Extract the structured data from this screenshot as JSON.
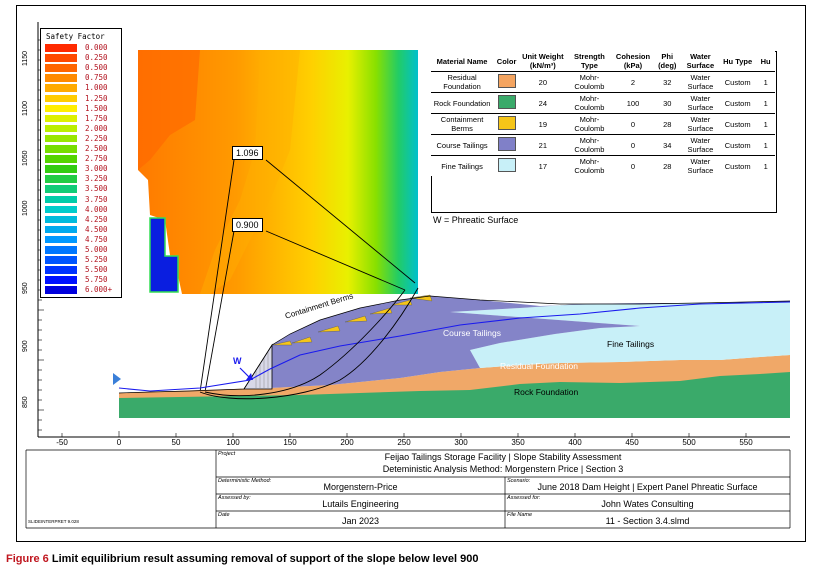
{
  "legend": {
    "title": "Safety Factor",
    "entries": [
      {
        "value": "0.000",
        "color": "#ff2a00"
      },
      {
        "value": "0.250",
        "color": "#ff4a00"
      },
      {
        "value": "0.500",
        "color": "#ff6600"
      },
      {
        "value": "0.750",
        "color": "#ff8a00"
      },
      {
        "value": "1.000",
        "color": "#ffaa00"
      },
      {
        "value": "1.250",
        "color": "#ffcc00"
      },
      {
        "value": "1.500",
        "color": "#ffee00"
      },
      {
        "value": "1.750",
        "color": "#ddf000"
      },
      {
        "value": "2.000",
        "color": "#bbee00"
      },
      {
        "value": "2.250",
        "color": "#99e600"
      },
      {
        "value": "2.500",
        "color": "#77dd00"
      },
      {
        "value": "2.750",
        "color": "#55d400"
      },
      {
        "value": "3.000",
        "color": "#33cc11"
      },
      {
        "value": "3.250",
        "color": "#22cc44"
      },
      {
        "value": "3.500",
        "color": "#11cc77"
      },
      {
        "value": "3.750",
        "color": "#00ccaa"
      },
      {
        "value": "4.000",
        "color": "#00cccc"
      },
      {
        "value": "4.250",
        "color": "#00bbdd"
      },
      {
        "value": "4.500",
        "color": "#00aaee"
      },
      {
        "value": "4.750",
        "color": "#0099ff"
      },
      {
        "value": "5.000",
        "color": "#0077ff"
      },
      {
        "value": "5.250",
        "color": "#0055ff"
      },
      {
        "value": "5.500",
        "color": "#0033ff"
      },
      {
        "value": "5.750",
        "color": "#0011ff"
      },
      {
        "value": "6.000+",
        "color": "#0000dd"
      }
    ]
  },
  "y_ticks": [
    "1150",
    "1100",
    "1050",
    "1000",
    "950",
    "900",
    "850"
  ],
  "x_ticks": [
    "-50",
    "0",
    "50",
    "100",
    "150",
    "200",
    "250",
    "300",
    "350",
    "400",
    "450",
    "500",
    "550"
  ],
  "materials_table": {
    "headers": [
      "Material Name",
      "Color",
      "Unit Weight (kN/m³)",
      "Strength Type",
      "Cohesion (kPa)",
      "Phi (deg)",
      "Water Surface",
      "Hu Type",
      "Hu"
    ],
    "rows": [
      {
        "name": "Residual Foundation",
        "color": "#f4a460",
        "unit_weight": "20",
        "strength": "Mohr-Coulomb",
        "cohesion": "2",
        "phi": "32",
        "water": "Water Surface",
        "hu_type": "Custom",
        "hu": "1"
      },
      {
        "name": "Rock Foundation",
        "color": "#3aaa6a",
        "unit_weight": "24",
        "strength": "Mohr-Coulomb",
        "cohesion": "100",
        "phi": "30",
        "water": "Water Surface",
        "hu_type": "Custom",
        "hu": "1"
      },
      {
        "name": "Containment Berms",
        "color": "#f5c518",
        "unit_weight": "19",
        "strength": "Mohr-Coulomb",
        "cohesion": "0",
        "phi": "28",
        "water": "Water Surface",
        "hu_type": "Custom",
        "hu": "1"
      },
      {
        "name": "Course Tailings",
        "color": "#8080c8",
        "unit_weight": "21",
        "strength": "Mohr-Coulomb",
        "cohesion": "0",
        "phi": "34",
        "water": "Water Surface",
        "hu_type": "Custom",
        "hu": "1"
      },
      {
        "name": "Fine Tailings",
        "color": "#c8f0f8",
        "unit_weight": "17",
        "strength": "Mohr-Coulomb",
        "cohesion": "0",
        "phi": "28",
        "water": "Water Surface",
        "hu_type": "Custom",
        "hu": "1"
      }
    ],
    "note": "W = Phreatic Surface"
  },
  "safety_factors": {
    "upper": "1.096",
    "lower": "0.900"
  },
  "labels": {
    "containment_berms": "Containment Berms",
    "course_tailings": "Course Tailings",
    "fine_tailings": "Fine Tailings",
    "residual_foundation": "Residual Foundation",
    "rock_foundation": "Rock Foundation",
    "w": "W"
  },
  "title_block": {
    "project_label": "Project",
    "project_line1": "Feijao Tailings Storage Facility | Slope Stability Assessment",
    "project_line2": "Deteministic Analysis Method: Morgenstern Price | Section 3",
    "method_label": "Deterministic Method:",
    "method": "Morgenstern-Price",
    "scenario_label": "Scenario:",
    "scenario": "June 2018 Dam Height | Expert Panel Phreatic Surface",
    "assessed_by_label": "Assessed by:",
    "assessed_by": "Lutails Engineering",
    "assessed_for_label": "Assessed for:",
    "assessed_for": "John Wates Consulting",
    "date_label": "Date",
    "date": "Jan 2023",
    "file_label": "File Name",
    "file": "11 - Section 3.4.slmd",
    "software": "SLIDEINTERPRET 9.028"
  },
  "caption": {
    "figure": "Figure 6",
    "text": " Limit equilibrium result assuming removal of support of the slope below level 900"
  }
}
